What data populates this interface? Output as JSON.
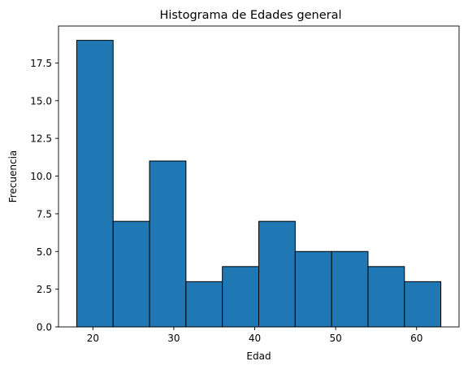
{
  "chart_data": {
    "type": "bar",
    "title": "Histograma de Edades general",
    "xlabel": "Edad",
    "ylabel": "Frecuencia",
    "bin_edges": [
      18,
      22.5,
      27,
      31.5,
      36,
      40.5,
      45,
      49.5,
      54,
      58.5,
      63
    ],
    "values": [
      19,
      7,
      11,
      3,
      4,
      7,
      5,
      5,
      4,
      3
    ],
    "xlim": [
      15.75,
      65.25
    ],
    "ylim": [
      0,
      19.95
    ],
    "xticks": [
      20,
      30,
      40,
      50,
      60
    ],
    "xtick_labels": [
      "20",
      "30",
      "40",
      "50",
      "60"
    ],
    "yticks": [
      0,
      2.5,
      5,
      7.5,
      10,
      12.5,
      15,
      17.5
    ],
    "ytick_labels": [
      "0.0",
      "2.5",
      "5.0",
      "7.5",
      "10.0",
      "12.5",
      "15.0",
      "17.5"
    ],
    "grid": false,
    "bar_color": "#1f77b4",
    "edge_color": "#000000"
  }
}
